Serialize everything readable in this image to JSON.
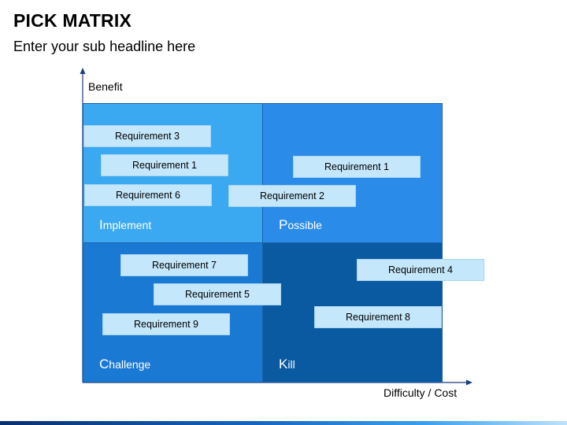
{
  "header": {
    "title": "PICK MATRIX",
    "subtitle": "Enter your sub headline here"
  },
  "axes": {
    "y_label": "Benefit",
    "x_label": "Difficulty / Cost"
  },
  "quadrants": {
    "implement": {
      "initial": "I",
      "rest": "mplement"
    },
    "possible": {
      "initial": "P",
      "rest": "ossible"
    },
    "challenge": {
      "initial": "C",
      "rest": "hallenge"
    },
    "kill": {
      "initial": "K",
      "rest": "ill"
    }
  },
  "requirements": {
    "r3": "Requirement 3",
    "r1a": "Requirement 1",
    "r6": "Requirement 6",
    "r1b": "Requirement 1",
    "r2": "Requirement 2",
    "r7": "Requirement 7",
    "r5": "Requirement 5",
    "r9": "Requirement 9",
    "r4": "Requirement 4",
    "r8": "Requirement 8"
  },
  "colors": {
    "implement": "#3ba9f1",
    "possible": "#2a8ce8",
    "challenge": "#1a79d3",
    "kill": "#0a5aa2",
    "requirement_box": "#c5e7fb"
  }
}
